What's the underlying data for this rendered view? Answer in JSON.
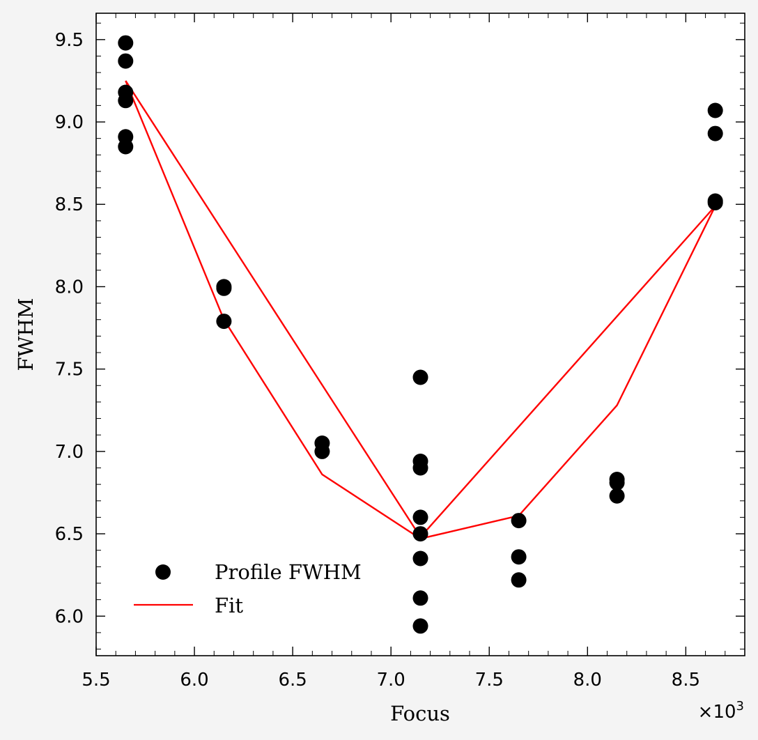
{
  "chart_data": {
    "type": "scatter",
    "xlabel": "Focus",
    "ylabel": "FWHM",
    "x_multiplier_label": "×10",
    "x_multiplier_exponent": "3",
    "xlim": [
      5.5,
      8.8
    ],
    "ylim": [
      5.76,
      9.66
    ],
    "x_scale_factor": 1000,
    "x_ticks": [
      5.5,
      6.0,
      6.5,
      7.0,
      7.5,
      8.0,
      8.5
    ],
    "x_tick_labels": [
      "5.5",
      "6.0",
      "6.5",
      "7.0",
      "7.5",
      "8.0",
      "8.5"
    ],
    "y_ticks": [
      6.0,
      6.5,
      7.0,
      7.5,
      8.0,
      8.5,
      9.0,
      9.5
    ],
    "y_tick_labels": [
      "6.0",
      "6.5",
      "7.0",
      "7.5",
      "8.0",
      "8.5",
      "9.0",
      "9.5"
    ],
    "grid": false,
    "legend_position": "lower-left",
    "series": [
      {
        "name": "Profile FWHM",
        "kind": "scatter",
        "color": "#000000",
        "points": [
          [
            5650,
            9.48
          ],
          [
            5650,
            9.37
          ],
          [
            5650,
            9.18
          ],
          [
            5650,
            9.13
          ],
          [
            5650,
            8.91
          ],
          [
            5650,
            8.85
          ],
          [
            6150,
            8.0
          ],
          [
            6150,
            7.99
          ],
          [
            6150,
            7.79
          ],
          [
            6650,
            7.05
          ],
          [
            6650,
            7.0
          ],
          [
            7150,
            7.45
          ],
          [
            7150,
            6.94
          ],
          [
            7150,
            6.9
          ],
          [
            7150,
            6.6
          ],
          [
            7150,
            6.5
          ],
          [
            7150,
            6.35
          ],
          [
            7150,
            6.11
          ],
          [
            7150,
            5.94
          ],
          [
            7650,
            6.58
          ],
          [
            7650,
            6.36
          ],
          [
            7650,
            6.22
          ],
          [
            8150,
            6.83
          ],
          [
            8150,
            6.81
          ],
          [
            8150,
            6.73
          ],
          [
            8650,
            9.07
          ],
          [
            8650,
            8.93
          ],
          [
            8650,
            8.52
          ],
          [
            8650,
            8.51
          ]
        ]
      },
      {
        "name": "Fit",
        "kind": "line",
        "color": "#ff0000",
        "points": [
          [
            5650,
            9.25
          ],
          [
            6150,
            7.8
          ],
          [
            6650,
            6.86
          ],
          [
            7150,
            6.47
          ],
          [
            7650,
            6.61
          ],
          [
            8150,
            7.28
          ],
          [
            8650,
            8.49
          ],
          [
            7150,
            6.48
          ],
          [
            5650,
            9.25
          ]
        ]
      }
    ]
  }
}
